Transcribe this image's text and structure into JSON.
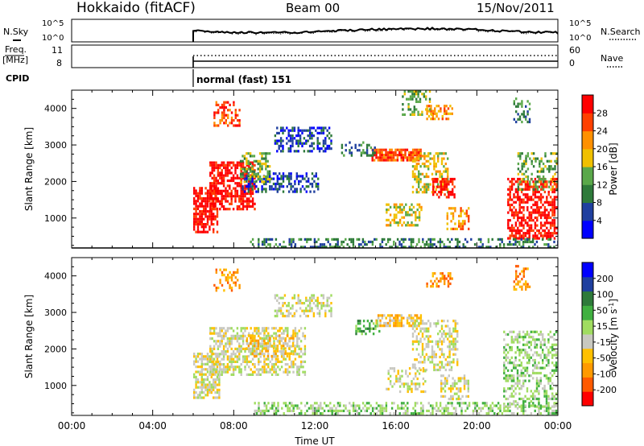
{
  "header": {
    "site": "Hokkaido (fitACF)",
    "beam": "Beam 00",
    "date": "15/Nov/2011"
  },
  "noise_panel": {
    "left_label": "N.Sky",
    "left_ticks": [
      "10^5",
      "10^0"
    ],
    "right_label": "N.Search",
    "right_ticks": [
      "10^5",
      "10^0"
    ]
  },
  "freq_panel": {
    "left_label_1": "Freq.",
    "left_label_2": "[MHz]",
    "left_ticks": [
      "11",
      "8"
    ],
    "right_label": "Nave",
    "right_ticks": [
      "60",
      "0"
    ]
  },
  "cpid_panel": {
    "label": "CPID",
    "program": "normal (fast) 151"
  },
  "colors": {
    "power_scale": [
      "#0000ff",
      "#1f3f9f",
      "#2e7a3a",
      "#5aa84a",
      "#f0c000",
      "#ff9000",
      "#ff4000",
      "#ff0000"
    ],
    "velocity_scale": [
      "#ff0000",
      "#ff5a00",
      "#ff9a00",
      "#ffc000",
      "#c8c8c0",
      "#a0dc60",
      "#40b040",
      "#2e7a3a",
      "#1f3f9f",
      "#0000ff"
    ]
  },
  "chart_data": [
    {
      "type": "heatmap",
      "name": "power",
      "ylabel": "Slant Range [km]",
      "ylim": [
        180,
        4500
      ],
      "yticks": [
        "4000",
        "3000",
        "2000",
        "1000"
      ],
      "xlim": [
        0,
        24
      ],
      "colorbar_label": "Power [dB]",
      "colorbar_ticks": [
        "28",
        "24",
        "20",
        "16",
        "12",
        "8",
        "4"
      ],
      "blobs": [
        {
          "t0": 6.0,
          "t1": 7.2,
          "r0": 650,
          "r1": 1850,
          "level": 7,
          "speckle": 0.3
        },
        {
          "t0": 6.8,
          "t1": 9.0,
          "r0": 1250,
          "r1": 2550,
          "level": 7,
          "speckle": 0.35
        },
        {
          "t0": 8.4,
          "t1": 12.2,
          "r0": 1750,
          "r1": 2250,
          "level": 1,
          "speckle": 0.55
        },
        {
          "t0": 8.3,
          "t1": 9.8,
          "r0": 2000,
          "r1": 2800,
          "level": 3,
          "speckle": 0.5
        },
        {
          "t0": 10.0,
          "t1": 12.8,
          "r0": 2800,
          "r1": 3500,
          "level": 1,
          "speckle": 0.55
        },
        {
          "t0": 7.0,
          "t1": 8.3,
          "r0": 3500,
          "r1": 4200,
          "level": 6,
          "speckle": 0.6
        },
        {
          "t0": 14.8,
          "t1": 17.2,
          "r0": 2550,
          "r1": 2900,
          "level": 6,
          "speckle": 0.25
        },
        {
          "t0": 13.3,
          "t1": 15.0,
          "r0": 2700,
          "r1": 3100,
          "level": 2,
          "speckle": 0.6
        },
        {
          "t0": 16.8,
          "t1": 18.6,
          "r0": 1700,
          "r1": 2800,
          "level": 4,
          "speckle": 0.5
        },
        {
          "t0": 17.8,
          "t1": 18.9,
          "r0": 1600,
          "r1": 2100,
          "level": 7,
          "speckle": 0.4
        },
        {
          "t0": 15.5,
          "t1": 17.3,
          "r0": 800,
          "r1": 1400,
          "level": 4,
          "speckle": 0.55
        },
        {
          "t0": 18.5,
          "t1": 19.6,
          "r0": 700,
          "r1": 1300,
          "level": 5,
          "speckle": 0.5
        },
        {
          "t0": 17.5,
          "t1": 18.8,
          "r0": 3700,
          "r1": 4100,
          "level": 5,
          "speckle": 0.5
        },
        {
          "t0": 16.3,
          "t1": 17.8,
          "r0": 3800,
          "r1": 4500,
          "level": 3,
          "speckle": 0.6
        },
        {
          "t0": 21.5,
          "t1": 24.0,
          "r0": 450,
          "r1": 2100,
          "level": 7,
          "speckle": 0.4
        },
        {
          "t0": 22.0,
          "t1": 24.0,
          "r0": 1800,
          "r1": 2800,
          "level": 3,
          "speckle": 0.6
        },
        {
          "t0": 21.8,
          "t1": 22.6,
          "r0": 3600,
          "r1": 4300,
          "level": 2,
          "speckle": 0.7
        },
        {
          "t0": 8.8,
          "t1": 24.0,
          "r0": 180,
          "r1": 450,
          "level": 2,
          "speckle": 0.55
        }
      ]
    },
    {
      "type": "heatmap",
      "name": "velocity",
      "ylabel": "Slant Range [km]",
      "ylim": [
        180,
        4500
      ],
      "yticks": [
        "4000",
        "3000",
        "2000",
        "1000"
      ],
      "xlim": [
        0,
        24
      ],
      "xticks": [
        "00:00",
        "04:00",
        "08:00",
        "12:00",
        "16:00",
        "20:00",
        "00:00"
      ],
      "xlabel": "Time UT",
      "colorbar_label": "Velocity [m s",
      "colorbar_label_sup": "-1",
      "colorbar_label_end": "]",
      "colorbar_ticks": [
        "200",
        "100",
        "50",
        "15",
        "-15",
        "-50",
        "-100",
        "-200"
      ],
      "blobs": [
        {
          "t0": 6.0,
          "t1": 7.3,
          "r0": 650,
          "r1": 1900,
          "level": 4,
          "speckle": 0.35
        },
        {
          "t0": 6.8,
          "t1": 11.5,
          "r0": 1300,
          "r1": 2600,
          "level": 4,
          "speckle": 0.45
        },
        {
          "t0": 8.5,
          "t1": 11.0,
          "r0": 1800,
          "r1": 2400,
          "level": 3,
          "speckle": 0.6
        },
        {
          "t0": 10.0,
          "t1": 12.8,
          "r0": 2900,
          "r1": 3500,
          "level": 4,
          "speckle": 0.55
        },
        {
          "t0": 7.0,
          "t1": 8.3,
          "r0": 3500,
          "r1": 4200,
          "level": 2,
          "speckle": 0.65
        },
        {
          "t0": 15.0,
          "t1": 17.2,
          "r0": 2650,
          "r1": 2950,
          "level": 3,
          "speckle": 0.35
        },
        {
          "t0": 14.0,
          "t1": 15.2,
          "r0": 2400,
          "r1": 2800,
          "level": 6,
          "speckle": 0.5
        },
        {
          "t0": 16.8,
          "t1": 19.0,
          "r0": 1400,
          "r1": 2800,
          "level": 4,
          "speckle": 0.55
        },
        {
          "t0": 15.5,
          "t1": 17.5,
          "r0": 800,
          "r1": 1500,
          "level": 4,
          "speckle": 0.6
        },
        {
          "t0": 18.2,
          "t1": 19.6,
          "r0": 600,
          "r1": 1300,
          "level": 4,
          "speckle": 0.55
        },
        {
          "t0": 17.5,
          "t1": 18.8,
          "r0": 3700,
          "r1": 4100,
          "level": 2,
          "speckle": 0.5
        },
        {
          "t0": 21.3,
          "t1": 24.0,
          "r0": 400,
          "r1": 2500,
          "level": 5,
          "speckle": 0.55
        },
        {
          "t0": 21.8,
          "t1": 22.6,
          "r0": 3600,
          "r1": 4300,
          "level": 2,
          "speckle": 0.7
        },
        {
          "t0": 9.0,
          "t1": 24.0,
          "r0": 180,
          "r1": 550,
          "level": 5,
          "speckle": 0.55
        }
      ]
    }
  ]
}
